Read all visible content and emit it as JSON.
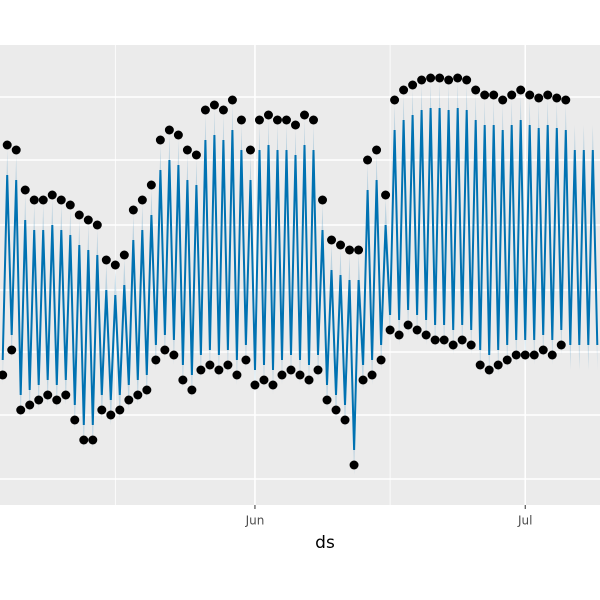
{
  "chart_data": {
    "type": "line",
    "x_label": "ds",
    "xlim": [
      2.7,
      69.3
    ],
    "ylim": [
      0,
      460
    ],
    "xticks": [
      {
        "value": 31,
        "label": "Jun"
      },
      {
        "value": 61,
        "label": "Jul"
      }
    ],
    "xminorticks": [
      15.5,
      46
    ],
    "yticks": [
      26,
      90,
      153,
      215,
      280,
      345,
      408
    ],
    "grid": true,
    "x": [
      3,
      3.5,
      4,
      4.5,
      5,
      5.5,
      6,
      6.5,
      7,
      7.5,
      8,
      8.5,
      9,
      9.5,
      10,
      10.5,
      11,
      11.5,
      12,
      12.5,
      13,
      13.5,
      14,
      14.5,
      15,
      15.5,
      16,
      16.5,
      17,
      17.5,
      18,
      18.5,
      19,
      19.5,
      20,
      20.5,
      21,
      21.5,
      22,
      22.5,
      23,
      23.5,
      24,
      24.5,
      25,
      25.5,
      26,
      26.5,
      27,
      27.5,
      28,
      28.5,
      29,
      29.5,
      30,
      30.5,
      31,
      31.5,
      32,
      32.5,
      33,
      33.5,
      34,
      34.5,
      35,
      35.5,
      36,
      36.5,
      37,
      37.5,
      38,
      38.5,
      39,
      39.5,
      40,
      40.5,
      41,
      41.5,
      42,
      42.5,
      43,
      43.5,
      44,
      44.5,
      45,
      45.5,
      46,
      46.5,
      47,
      47.5,
      48,
      48.5,
      49,
      49.5,
      50,
      50.5,
      51,
      51.5,
      52,
      52.5,
      53,
      53.5,
      54,
      54.5,
      55,
      55.5,
      56,
      56.5,
      57,
      57.5,
      58,
      58.5,
      59,
      59.5,
      60,
      60.5,
      61,
      61.5,
      62,
      62.5,
      63,
      63.5,
      64,
      64.5,
      65,
      65.5,
      66,
      66.5,
      67,
      67.5,
      68,
      68.5,
      69
    ],
    "series": [
      {
        "type": "area",
        "color": "#0072B2",
        "lower": [
          120,
          305,
          145,
          300,
          85,
          260,
          90,
          250,
          95,
          250,
          100,
          255,
          95,
          250,
          100,
          245,
          75,
          235,
          55,
          230,
          55,
          225,
          85,
          190,
          80,
          185,
          85,
          195,
          95,
          240,
          100,
          250,
          105,
          265,
          135,
          310,
          145,
          320,
          140,
          315,
          115,
          300,
          105,
          295,
          125,
          340,
          130,
          345,
          125,
          340,
          130,
          350,
          120,
          330,
          135,
          300,
          110,
          330,
          115,
          335,
          110,
          330,
          120,
          330,
          125,
          325,
          120,
          335,
          115,
          330,
          125,
          250,
          95,
          210,
          85,
          205,
          75,
          200,
          30,
          200,
          115,
          290,
          120,
          300,
          135,
          255,
          165,
          350,
          160,
          360,
          170,
          365,
          165,
          370,
          160,
          372,
          155,
          372,
          155,
          370,
          150,
          372,
          155,
          370,
          150,
          360,
          130,
          355,
          125,
          355,
          130,
          350,
          135,
          355,
          140,
          360,
          140,
          355,
          140,
          352,
          145,
          355,
          140,
          352,
          150,
          350,
          135,
          330,
          135,
          330,
          135,
          330,
          135
        ],
        "upper": [
          170,
          355,
          195,
          350,
          135,
          310,
          140,
          300,
          145,
          300,
          150,
          305,
          145,
          300,
          150,
          295,
          125,
          285,
          105,
          280,
          105,
          275,
          135,
          240,
          130,
          235,
          135,
          245,
          145,
          290,
          150,
          300,
          155,
          315,
          185,
          360,
          195,
          370,
          190,
          365,
          165,
          350,
          155,
          345,
          175,
          390,
          180,
          395,
          175,
          390,
          180,
          400,
          170,
          380,
          185,
          350,
          160,
          380,
          165,
          385,
          160,
          380,
          170,
          380,
          175,
          375,
          170,
          385,
          165,
          380,
          175,
          300,
          145,
          260,
          135,
          255,
          125,
          250,
          80,
          250,
          165,
          340,
          170,
          350,
          185,
          305,
          215,
          400,
          210,
          410,
          220,
          415,
          215,
          420,
          210,
          422,
          205,
          422,
          205,
          420,
          200,
          422,
          205,
          420,
          200,
          410,
          180,
          405,
          175,
          405,
          180,
          400,
          185,
          405,
          190,
          410,
          190,
          405,
          190,
          402,
          195,
          405,
          190,
          402,
          200,
          400,
          185,
          380,
          185,
          380,
          185,
          380,
          185
        ]
      },
      {
        "type": "scatter",
        "color": "#000000",
        "values": [
          130,
          360,
          155,
          355,
          95,
          315,
          100,
          305,
          105,
          305,
          110,
          310,
          105,
          305,
          110,
          300,
          85,
          290,
          65,
          285,
          65,
          280,
          95,
          245,
          90,
          240,
          95,
          250,
          105,
          295,
          110,
          305,
          115,
          320,
          145,
          365,
          155,
          375,
          150,
          370,
          125,
          355,
          115,
          350,
          135,
          395,
          140,
          400,
          135,
          395,
          140,
          405,
          130,
          385,
          145,
          355,
          120,
          385,
          125,
          390,
          120,
          385,
          130,
          385,
          135,
          380,
          130,
          390,
          125,
          385,
          135,
          305,
          105,
          265,
          95,
          260,
          85,
          255,
          40,
          255,
          125,
          345,
          130,
          355,
          145,
          310,
          175,
          405,
          170,
          415,
          180,
          420,
          175,
          425,
          170,
          427,
          165,
          427,
          165,
          425,
          160,
          427,
          165,
          425,
          160,
          415,
          140,
          410,
          135,
          410,
          140,
          405,
          145,
          410,
          150,
          415,
          150,
          410,
          150,
          407,
          155,
          410,
          150,
          407,
          160,
          405,
          null,
          null,
          null,
          null,
          null,
          null,
          null
        ]
      },
      {
        "type": "line",
        "color": "#0072B2",
        "values": [
          145,
          330,
          170,
          325,
          110,
          285,
          115,
          275,
          120,
          275,
          125,
          280,
          120,
          275,
          125,
          270,
          100,
          260,
          80,
          255,
          80,
          250,
          110,
          215,
          105,
          210,
          110,
          220,
          120,
          265,
          125,
          275,
          130,
          290,
          160,
          335,
          170,
          345,
          165,
          340,
          140,
          325,
          130,
          320,
          150,
          365,
          155,
          370,
          150,
          365,
          155,
          375,
          145,
          355,
          160,
          325,
          135,
          355,
          140,
          360,
          135,
          355,
          145,
          355,
          150,
          350,
          145,
          360,
          140,
          355,
          150,
          275,
          120,
          235,
          110,
          230,
          100,
          225,
          55,
          225,
          140,
          315,
          145,
          325,
          160,
          280,
          190,
          375,
          185,
          385,
          195,
          390,
          190,
          395,
          185,
          397,
          180,
          397,
          180,
          395,
          175,
          397,
          180,
          395,
          175,
          385,
          155,
          380,
          150,
          380,
          155,
          375,
          160,
          380,
          165,
          385,
          165,
          380,
          165,
          377,
          170,
          380,
          165,
          377,
          175,
          375,
          160,
          355,
          160,
          355,
          160,
          355,
          160
        ]
      }
    ]
  }
}
